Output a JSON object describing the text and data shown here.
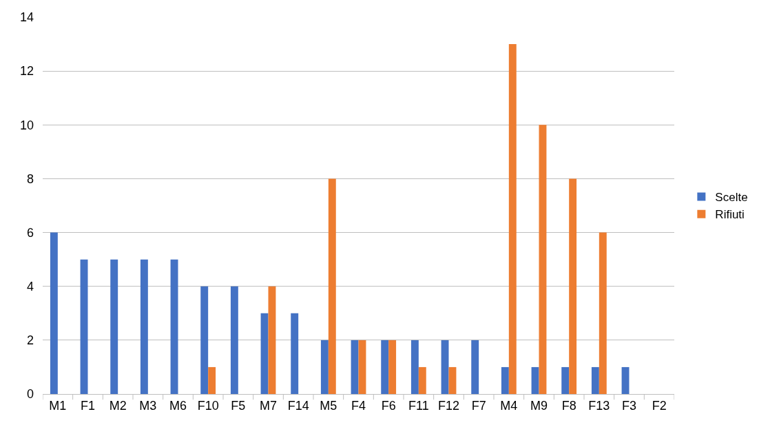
{
  "chart_data": {
    "type": "bar",
    "categories": [
      "M1",
      "F1",
      "M2",
      "M3",
      "M6",
      "F10",
      "F5",
      "M7",
      "F14",
      "M5",
      "F4",
      "F6",
      "F11",
      "F12",
      "F7",
      "M4",
      "M9",
      "F8",
      "F13",
      "F3",
      "F2"
    ],
    "series": [
      {
        "name": "Scelte",
        "color": "#4472c4",
        "values": [
          6,
          5,
          5,
          5,
          5,
          4,
          4,
          3,
          3,
          2,
          2,
          2,
          2,
          2,
          2,
          1,
          1,
          1,
          1,
          1,
          0
        ]
      },
      {
        "name": "Rifiuti",
        "color": "#ed7d31",
        "values": [
          0,
          0,
          0,
          0,
          0,
          1,
          0,
          4,
          0,
          8,
          2,
          2,
          1,
          1,
          0,
          13,
          10,
          8,
          6,
          0,
          0
        ]
      }
    ],
    "ylim": [
      0,
      14
    ],
    "yticks": [
      0,
      2,
      4,
      6,
      8,
      10,
      12,
      14
    ],
    "grid": "y",
    "legend": "right"
  }
}
